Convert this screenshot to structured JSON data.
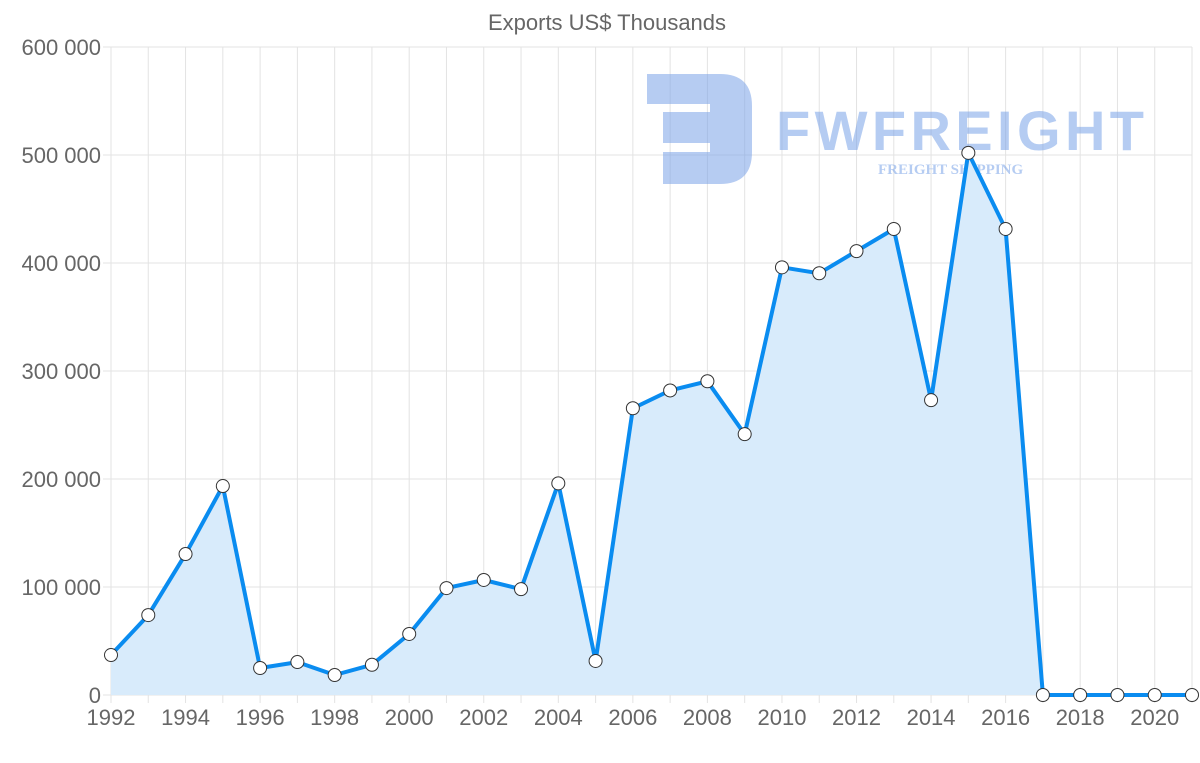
{
  "chart_data": {
    "type": "area",
    "title": "Exports US$ Thousands",
    "xlabel": "",
    "ylabel": "",
    "x": [
      1992,
      1993,
      1994,
      1995,
      1996,
      1997,
      1998,
      1999,
      2000,
      2001,
      2002,
      2003,
      2004,
      2005,
      2006,
      2007,
      2008,
      2009,
      2010,
      2011,
      2012,
      2013,
      2014,
      2015,
      2016,
      2017,
      2018,
      2019,
      2020,
      2021
    ],
    "values": [
      37000,
      74000,
      130500,
      193500,
      25000,
      30500,
      18500,
      28000,
      56500,
      99000,
      106500,
      98000,
      196000,
      31500,
      265500,
      282000,
      290500,
      241500,
      396000,
      390500,
      411000,
      431500,
      273000,
      502000,
      431500,
      0,
      0,
      0,
      0,
      0
    ],
    "ylim": [
      0,
      600000
    ],
    "yticks": [
      "0",
      "100 000",
      "200 000",
      "300 000",
      "400 000",
      "500 000",
      "600 000"
    ],
    "xticks": [
      "1992",
      "1994",
      "1996",
      "1998",
      "2000",
      "2002",
      "2004",
      "2006",
      "2008",
      "2010",
      "2012",
      "2014",
      "2016",
      "2018",
      "2020"
    ],
    "grid": true,
    "line_color": "#0a8cf0",
    "fill_color": "#d8ebfb"
  },
  "watermark": {
    "brand": "FWFREIGHT",
    "tagline": "FREIGHT SHIPPING"
  }
}
